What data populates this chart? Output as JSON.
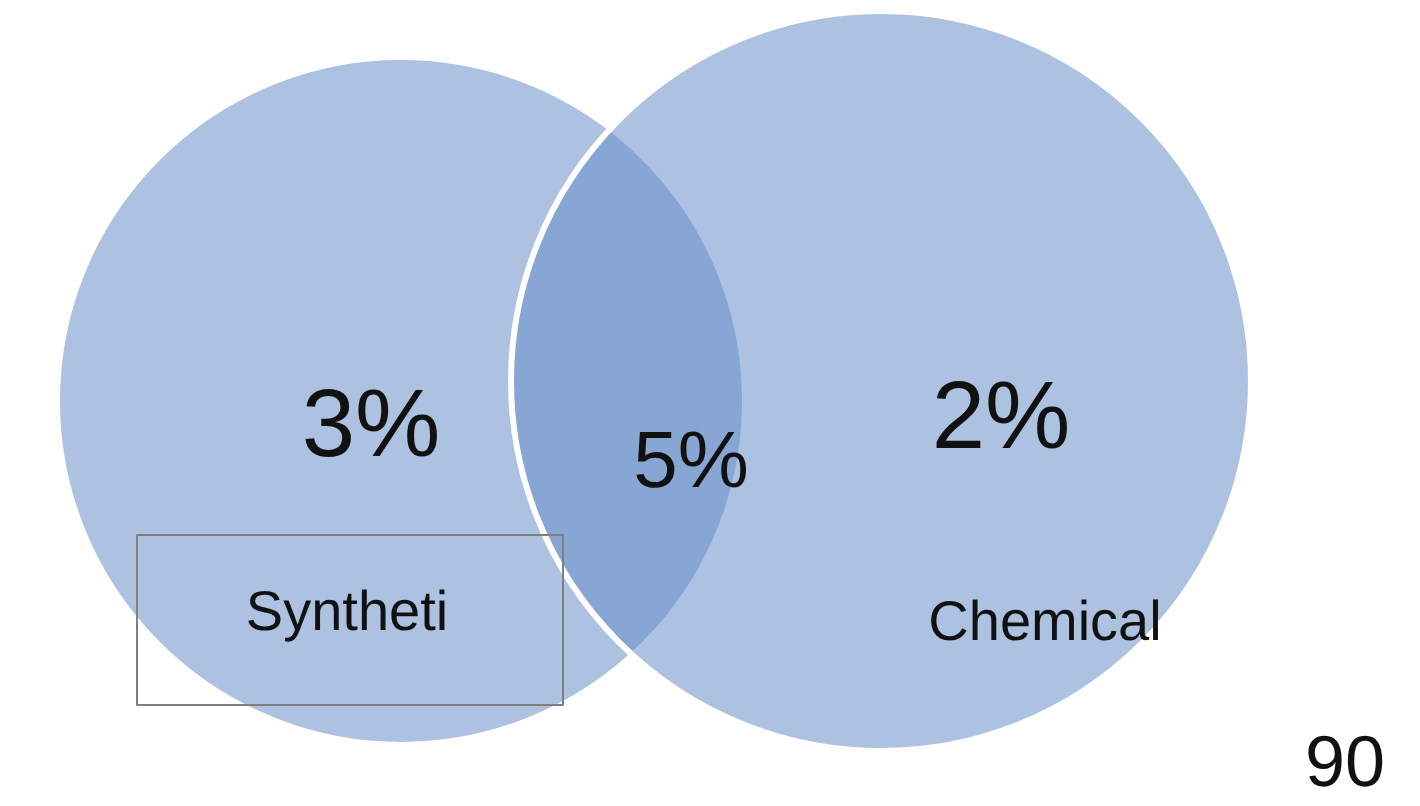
{
  "chart_data": {
    "type": "other",
    "categories": [
      "Syntheti",
      "Chemical"
    ],
    "values": [
      3,
      2
    ],
    "value_labels": [
      "3%",
      "2%"
    ],
    "color": "#6a8fc8",
    "annotations": [
      "5%",
      "90"
    ]
  }
}
